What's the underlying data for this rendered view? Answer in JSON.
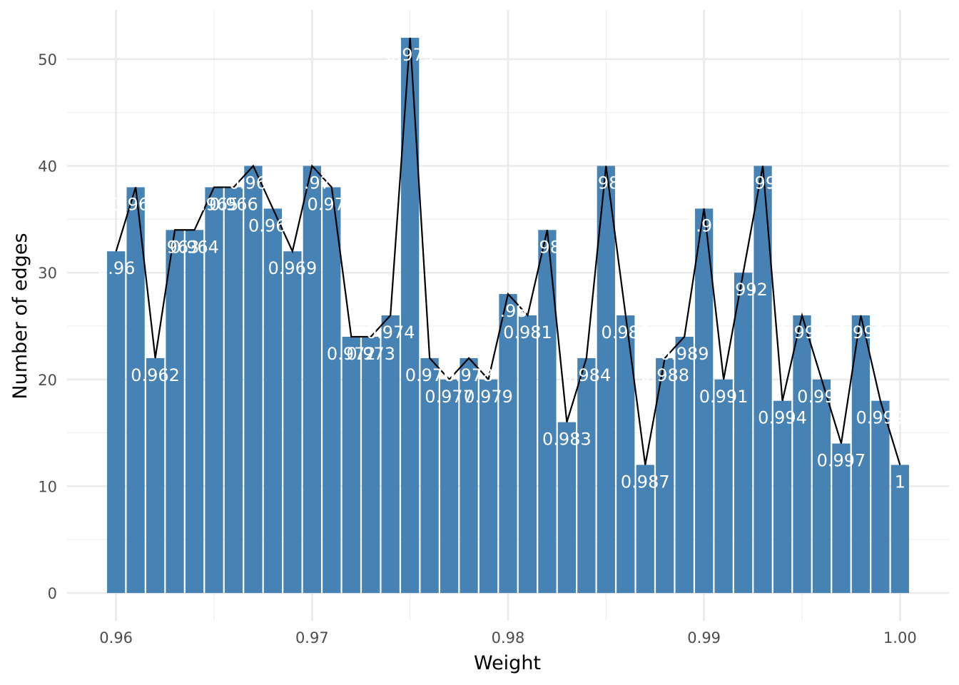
{
  "chart_data": {
    "type": "bar",
    "xlabel": "Weight",
    "ylabel": "Number of edges",
    "xlim": [
      0.9575,
      1.0025
    ],
    "ylim": [
      -2.6,
      54.6
    ],
    "x_ticks": [
      {
        "value": 0.96,
        "label": "0.96"
      },
      {
        "value": 0.97,
        "label": "0.97"
      },
      {
        "value": 0.98,
        "label": "0.98"
      },
      {
        "value": 0.99,
        "label": "0.99"
      },
      {
        "value": 1.0,
        "label": "1.00"
      }
    ],
    "y_ticks": [
      {
        "value": 0,
        "label": "0"
      },
      {
        "value": 10,
        "label": "10"
      },
      {
        "value": 20,
        "label": "20"
      },
      {
        "value": 30,
        "label": "30"
      },
      {
        "value": 40,
        "label": "40"
      },
      {
        "value": 50,
        "label": "50"
      }
    ],
    "grid": true,
    "legend": "none",
    "overlay": "line through bar tops",
    "bar_width": 0.00092,
    "bar_color": "#4682B4",
    "line_color": "#000000",
    "bars": [
      {
        "x": 0.96,
        "value": 32,
        "label": "0.96"
      },
      {
        "x": 0.961,
        "value": 38,
        "label": "0.961"
      },
      {
        "x": 0.962,
        "value": 22,
        "label": "0.962"
      },
      {
        "x": 0.963,
        "value": 34,
        "label": "0.963"
      },
      {
        "x": 0.964,
        "value": 34,
        "label": "0.964"
      },
      {
        "x": 0.965,
        "value": 38,
        "label": "0.965"
      },
      {
        "x": 0.966,
        "value": 38,
        "label": "0.966"
      },
      {
        "x": 0.967,
        "value": 40,
        "label": "0.967"
      },
      {
        "x": 0.968,
        "value": 36,
        "label": "0.968"
      },
      {
        "x": 0.969,
        "value": 32,
        "label": "0.969"
      },
      {
        "x": 0.97,
        "value": 40,
        "label": "0.97"
      },
      {
        "x": 0.971,
        "value": 38,
        "label": "0.971"
      },
      {
        "x": 0.972,
        "value": 24,
        "label": "0.972"
      },
      {
        "x": 0.973,
        "value": 24,
        "label": "0.973"
      },
      {
        "x": 0.974,
        "value": 26,
        "label": "0.974"
      },
      {
        "x": 0.975,
        "value": 52,
        "label": "0.975"
      },
      {
        "x": 0.976,
        "value": 22,
        "label": "0.976"
      },
      {
        "x": 0.977,
        "value": 20,
        "label": "0.977"
      },
      {
        "x": 0.978,
        "value": 22,
        "label": "0.978"
      },
      {
        "x": 0.979,
        "value": 20,
        "label": "0.979"
      },
      {
        "x": 0.98,
        "value": 28,
        "label": "0.98"
      },
      {
        "x": 0.981,
        "value": 26,
        "label": "0.981"
      },
      {
        "x": 0.982,
        "value": 34,
        "label": "0.982"
      },
      {
        "x": 0.983,
        "value": 16,
        "label": "0.983"
      },
      {
        "x": 0.984,
        "value": 22,
        "label": "0.984"
      },
      {
        "x": 0.985,
        "value": 40,
        "label": "0.985"
      },
      {
        "x": 0.986,
        "value": 26,
        "label": "0.986"
      },
      {
        "x": 0.987,
        "value": 12,
        "label": "0.987"
      },
      {
        "x": 0.988,
        "value": 22,
        "label": "0.988"
      },
      {
        "x": 0.989,
        "value": 24,
        "label": "0.989"
      },
      {
        "x": 0.99,
        "value": 36,
        "label": "0.99"
      },
      {
        "x": 0.991,
        "value": 20,
        "label": "0.991"
      },
      {
        "x": 0.992,
        "value": 30,
        "label": "0.992"
      },
      {
        "x": 0.993,
        "value": 40,
        "label": "0.993"
      },
      {
        "x": 0.994,
        "value": 18,
        "label": "0.994"
      },
      {
        "x": 0.995,
        "value": 26,
        "label": "0.995"
      },
      {
        "x": 0.996,
        "value": 20,
        "label": "0.996"
      },
      {
        "x": 0.997,
        "value": 14,
        "label": "0.997"
      },
      {
        "x": 0.998,
        "value": 26,
        "label": "0.998"
      },
      {
        "x": 0.999,
        "value": 18,
        "label": "0.999"
      },
      {
        "x": 1.0,
        "value": 12,
        "label": "1"
      }
    ]
  }
}
